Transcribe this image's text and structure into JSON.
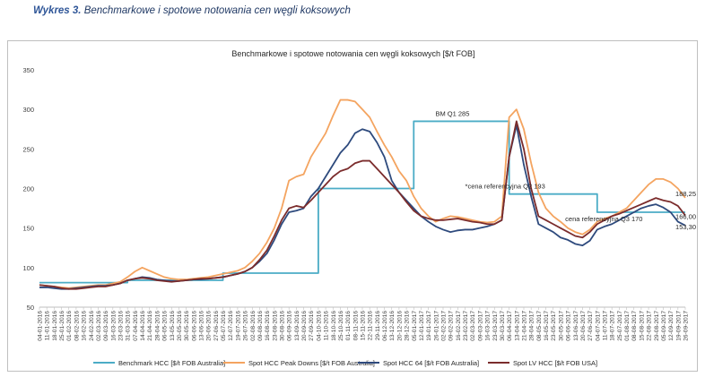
{
  "caption": {
    "number": "Wykres 3.",
    "text": "Benchmarkowe i spotowe notowania cen węgli koksowych"
  },
  "chart_data": {
    "type": "line",
    "title": "Benchmarkowe i spotowe  notowania cen węgli koksowych [$/t FOB]",
    "ylim": [
      50,
      350
    ],
    "yticks": [
      50,
      100,
      150,
      200,
      250,
      300,
      350
    ],
    "grid": false,
    "legend_position": "bottom",
    "xlabels": [
      "04-01-2016",
      "11-01-2016",
      "18-01-2016",
      "25-01-2016",
      "01-02-2016",
      "08-02-2016",
      "16-02-2016",
      "24-02-2016",
      "02-03-2016",
      "09-03-2016",
      "16-03-2016",
      "23-03-2016",
      "31-03-2016",
      "07-04-2016",
      "14-04-2016",
      "21-04-2016",
      "28-04-2016",
      "06-05-2016",
      "13-05-2016",
      "20-05-2016",
      "30-05-2016",
      "06-06-2016",
      "13-06-2016",
      "20-06-2016",
      "27-06-2016",
      "05-07-2016",
      "12-07-2016",
      "19-07-2016",
      "26-07-2016",
      "02-08-2016",
      "09-08-2016",
      "16-08-2016",
      "23-08-2016",
      "30-08-2016",
      "06-09-2016",
      "13-09-2016",
      "20-09-2016",
      "27-09-2016",
      "04-10-2016",
      "11-10-2016",
      "18-10-2016",
      "25-10-2016",
      "01-11-2016",
      "08-11-2016",
      "15-11-2016",
      "22-11-2016",
      "29-11-2016",
      "06-12-2016",
      "13-12-2016",
      "20-12-2016",
      "28-12-2016",
      "05-01-2017",
      "12-01-2017",
      "19-01-2017",
      "26-01-2017",
      "02-02-2017",
      "09-02-2017",
      "16-02-2017",
      "23-02-2017",
      "02-03-2017",
      "09-03-2017",
      "16-03-2017",
      "23-03-2017",
      "30-03-2017",
      "06-04-2017",
      "13-04-2017",
      "21-04-2017",
      "28-04-2017",
      "08-05-2017",
      "16-05-2017",
      "23-05-2017",
      "30-05-2017",
      "06-06-2017",
      "13-06-2017",
      "20-06-2017",
      "27-06-2017",
      "04-07-2017",
      "11-07-2017",
      "18-07-2017",
      "25-07-2017",
      "01-08-2017",
      "08-08-2017",
      "15-08-2017",
      "22-08-2017",
      "29-08-2017",
      "05-09-2017",
      "12-09-2017",
      "19-09-2017",
      "26-09-2017"
    ],
    "series": [
      {
        "name": "Benchmark HCC [$/t FOB Australia]",
        "color": "#4bacc6",
        "values": [
          81,
          81,
          81,
          81,
          81,
          81,
          81,
          81,
          81,
          81,
          81,
          81,
          84,
          84,
          84,
          84,
          84,
          84,
          84,
          84,
          84,
          84,
          84,
          84,
          84,
          93,
          93,
          93,
          93,
          93,
          93,
          93,
          93,
          93,
          93,
          93,
          93,
          93,
          200,
          200,
          200,
          200,
          200,
          200,
          200,
          200,
          200,
          200,
          200,
          200,
          200,
          285,
          285,
          285,
          285,
          285,
          285,
          285,
          285,
          285,
          285,
          285,
          285,
          285,
          193,
          193,
          193,
          193,
          193,
          193,
          193,
          193,
          193,
          193,
          193,
          193,
          170,
          170,
          170,
          170,
          170,
          170,
          170,
          170,
          170,
          170,
          170,
          170,
          170
        ]
      },
      {
        "name": "Spot HCC Peak Downs [$/t FOB Australia]",
        "color": "#f4a460",
        "values": [
          78,
          77,
          76,
          75,
          74,
          75,
          76,
          77,
          78,
          78,
          80,
          82,
          88,
          95,
          100,
          96,
          92,
          88,
          86,
          85,
          85,
          86,
          87,
          88,
          90,
          92,
          94,
          96,
          100,
          108,
          118,
          132,
          150,
          175,
          210,
          215,
          218,
          240,
          255,
          270,
          292,
          312,
          312,
          310,
          300,
          290,
          272,
          255,
          240,
          222,
          210,
          190,
          175,
          165,
          158,
          162,
          165,
          164,
          162,
          160,
          158,
          157,
          158,
          165,
          290,
          300,
          275,
          232,
          195,
          175,
          165,
          158,
          150,
          145,
          142,
          148,
          158,
          162,
          165,
          170,
          175,
          185,
          195,
          205,
          212,
          212,
          208,
          200,
          188.25
        ]
      },
      {
        "name": "Spot HCC 64 [$/t FOB Australia]",
        "color": "#2e4a7d",
        "values": [
          75,
          75,
          74,
          73,
          73,
          74,
          75,
          76,
          77,
          77,
          78,
          80,
          84,
          86,
          88,
          87,
          85,
          84,
          83,
          83,
          84,
          85,
          85,
          86,
          87,
          88,
          90,
          92,
          95,
          100,
          108,
          118,
          135,
          155,
          170,
          172,
          175,
          190,
          200,
          215,
          230,
          245,
          255,
          270,
          275,
          272,
          258,
          240,
          210,
          195,
          185,
          175,
          165,
          158,
          152,
          148,
          145,
          147,
          148,
          148,
          150,
          152,
          155,
          160,
          240,
          280,
          230,
          190,
          155,
          150,
          145,
          138,
          135,
          130,
          128,
          134,
          148,
          152,
          155,
          160,
          165,
          170,
          175,
          178,
          180,
          176,
          170,
          158,
          153.3
        ]
      },
      {
        "name": "Spot LV HCC [$/t FOB USA]",
        "color": "#7b2c2c",
        "values": [
          78,
          77,
          76,
          74,
          73,
          73,
          74,
          75,
          76,
          76,
          78,
          80,
          84,
          86,
          87,
          86,
          84,
          83,
          82,
          83,
          84,
          85,
          86,
          86,
          87,
          88,
          90,
          92,
          95,
          100,
          110,
          122,
          140,
          160,
          175,
          178,
          176,
          185,
          195,
          205,
          215,
          222,
          225,
          232,
          235,
          235,
          225,
          215,
          205,
          195,
          183,
          172,
          165,
          162,
          160,
          160,
          161,
          162,
          160,
          158,
          157,
          155,
          155,
          160,
          240,
          285,
          250,
          200,
          165,
          160,
          155,
          150,
          145,
          140,
          138,
          145,
          155,
          160,
          165,
          168,
          172,
          176,
          180,
          184,
          188,
          185,
          183,
          178,
          166
        ]
      }
    ],
    "annotations": [
      {
        "text": "BM Q1 285",
        "x": "12-01-2017",
        "y": 285
      },
      {
        "text": "*cena referencyjna Q2 193",
        "x": "16-05-2017",
        "y": 193
      },
      {
        "text": "cena referencyjna Q3 170",
        "x": "18-07-2017",
        "y": 160
      },
      {
        "text": "188,25",
        "x": "26-09-2017",
        "y": 188.25
      },
      {
        "text": "166,00",
        "x": "26-09-2017",
        "y": 166
      },
      {
        "text": "153,30",
        "x": "26-09-2017",
        "y": 153.3
      }
    ]
  }
}
